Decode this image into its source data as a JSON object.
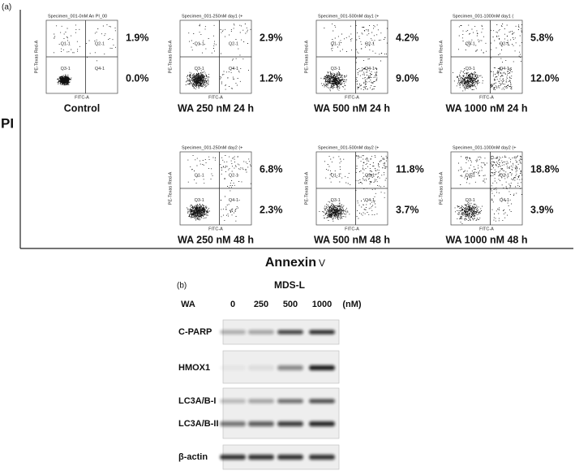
{
  "panel_a": {
    "label": "(a)",
    "y_axis": "PI",
    "x_axis": "Annexin",
    "x_axis_suffix": "V",
    "plots": [
      {
        "title": "Specimen_001-0nM An PI_00",
        "q1": "Q1-1",
        "q2": "Q2-1",
        "q3": "Q3-1",
        "q4": "Q4-1",
        "y_label": "PE-Texas Red-A",
        "x_label": "FITC-A",
        "upper": "1.9%",
        "lower": "0.0%",
        "caption": "Control"
      },
      {
        "title": "Specimen_001-250nM day1 (+",
        "q1": "Q1-1",
        "q2": "Q2-1",
        "q3": "Q3-1",
        "q4": "Q4-1",
        "y_label": "PE-Texas Red-A",
        "x_label": "FITC-A",
        "upper": "2.9%",
        "lower": "1.2%",
        "caption": "WA 250 nM 24 h"
      },
      {
        "title": "Specimen_001-500nM day1 (+",
        "q1": "Q1-1",
        "q2": "Q2-1",
        "q3": "Q3-1",
        "q4": "Q4-1",
        "y_label": "PE-Texas Red-A",
        "x_label": "FITC-A",
        "upper": "4.2%",
        "lower": "9.0%",
        "caption": "WA 500 nM 24 h"
      },
      {
        "title": "Specimen_001-1000nM day1 (",
        "q1": "Q1-1",
        "q2": "Q2-1",
        "q3": "Q3-1",
        "q4": "Q4-1",
        "y_label": "PE-Texas Red-A",
        "x_label": "FITC-A",
        "upper": "5.8%",
        "lower": "12.0%",
        "caption": "WA 1000 nM 24 h"
      },
      {
        "title": "Specimen_001-250nM day2 (+",
        "q1": "Q1-1",
        "q2": "Q2-1",
        "q3": "Q3-1",
        "q4": "Q4-1",
        "y_label": "PE-Texas Red-A",
        "x_label": "FITC-A",
        "upper": "6.8%",
        "lower": "2.3%",
        "caption": "WA 250 nM 48 h"
      },
      {
        "title": "Specimen_001-500nM day2 (+",
        "q1": "Q1-1",
        "q2": "Q2-1",
        "q3": "Q3-1",
        "q4": "Q4-1",
        "y_label": "PE-Texas Red-A",
        "x_label": "FITC-A",
        "upper": "11.8%",
        "lower": "3.7%",
        "caption": "WA 500 nM 48 h"
      },
      {
        "title": "Specimen_001-1000nM day2 (+",
        "q1": "Q1-1",
        "q2": "Q2-1",
        "q3": "Q3-1",
        "q4": "Q4-1",
        "y_label": "PE-Texas Red-A",
        "x_label": "FITC-A",
        "upper": "18.8%",
        "lower": "3.9%",
        "caption": "WA 1000 nM 48 h"
      }
    ]
  },
  "panel_b": {
    "label": "(b)",
    "cell_line": "MDS-L",
    "treatment": "WA",
    "doses": [
      "0",
      "250",
      "500",
      "1000"
    ],
    "unit": "(nM)",
    "rows": [
      "C-PARP",
      "HMOX1",
      "LC3A/B-I",
      "LC3A/B-II",
      "β-actin"
    ]
  }
}
